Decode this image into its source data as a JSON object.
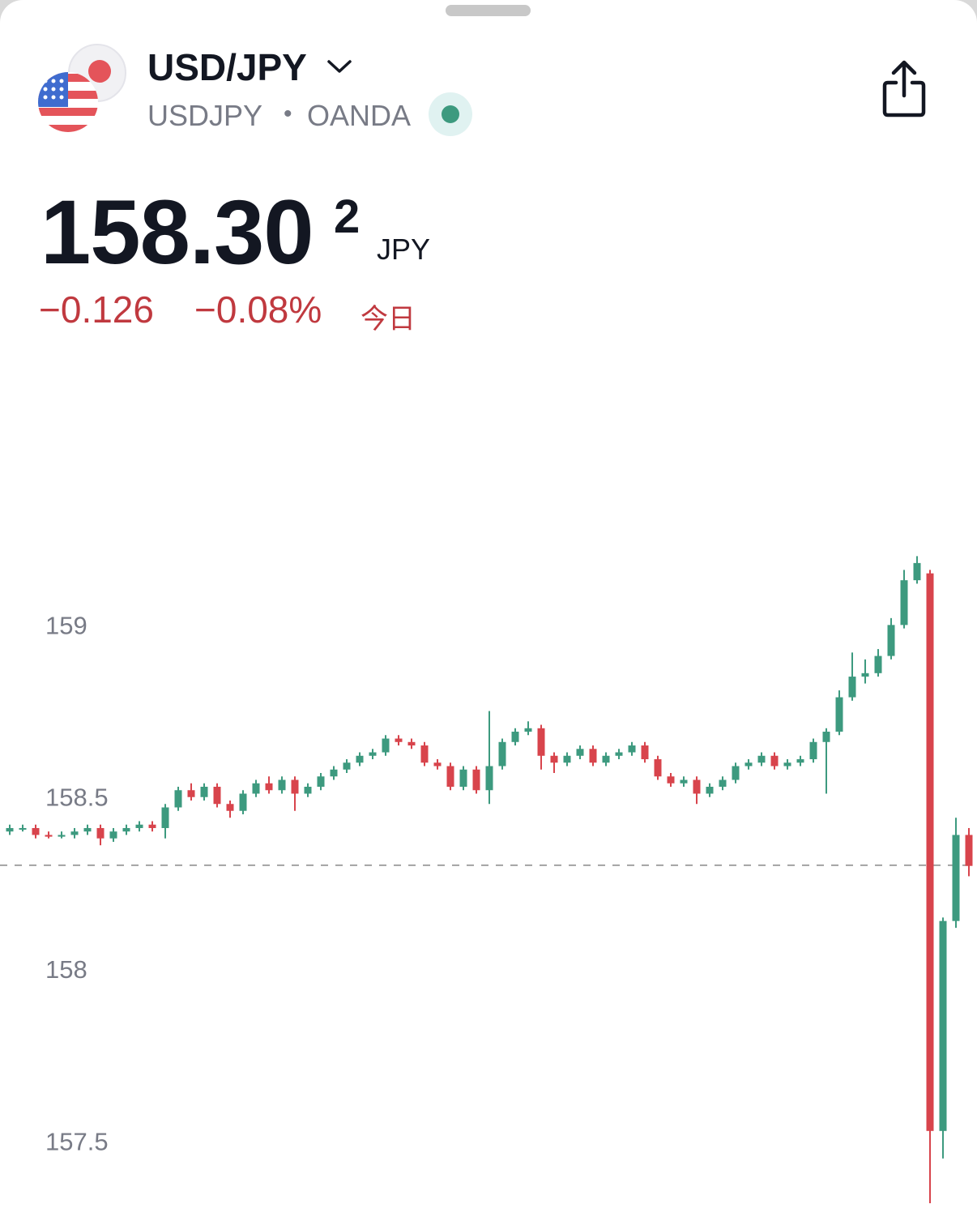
{
  "header": {
    "symbol": "USD/JPY",
    "ticker": "USDJPY",
    "separator": "•",
    "exchange": "OANDA",
    "price_main": "158.30",
    "price_pip": "2",
    "currency": "JPY",
    "change": "−0.126",
    "change_percent": "−0.08%",
    "period": "今日"
  },
  "chart_data": {
    "type": "candlestick",
    "open": [
      158.4,
      158.41,
      158.41,
      158.39,
      158.385,
      158.39,
      158.4,
      158.41,
      158.38,
      158.4,
      158.41,
      158.42,
      158.41,
      158.47,
      158.52,
      158.5,
      158.53,
      158.48,
      158.46,
      158.51,
      158.54,
      158.52,
      158.55,
      158.51,
      158.53,
      158.56,
      158.58,
      158.6,
      158.62,
      158.63,
      158.67,
      158.66,
      158.65,
      158.6,
      158.59,
      158.53,
      158.58,
      158.52,
      158.59,
      158.66,
      158.69,
      158.7,
      158.62,
      158.6,
      158.62,
      158.64,
      158.6,
      158.62,
      158.63,
      158.65,
      158.61,
      158.56,
      158.54,
      158.55,
      158.51,
      158.53,
      158.55,
      158.59,
      158.6,
      158.62,
      158.59,
      158.6,
      158.61,
      158.66,
      158.69,
      158.79,
      158.85,
      158.86,
      158.91,
      159.0,
      159.13,
      159.15,
      157.53,
      158.14,
      158.39
    ],
    "high": [
      158.42,
      158.42,
      158.42,
      158.4,
      158.4,
      158.41,
      158.42,
      158.42,
      158.41,
      158.42,
      158.43,
      158.43,
      158.48,
      158.53,
      158.54,
      158.54,
      158.54,
      158.49,
      158.52,
      158.55,
      158.56,
      158.56,
      158.56,
      158.54,
      158.57,
      158.59,
      158.61,
      158.63,
      158.64,
      158.68,
      158.68,
      158.67,
      158.66,
      158.61,
      158.6,
      158.59,
      158.59,
      158.75,
      158.67,
      158.7,
      158.72,
      158.71,
      158.63,
      158.63,
      158.65,
      158.65,
      158.63,
      158.64,
      158.66,
      158.66,
      158.62,
      158.57,
      158.56,
      158.56,
      158.54,
      158.56,
      158.6,
      158.61,
      158.63,
      158.63,
      158.61,
      158.62,
      158.67,
      158.7,
      158.81,
      158.92,
      158.9,
      158.93,
      159.02,
      159.16,
      159.2,
      159.16,
      158.15,
      158.44,
      158.41
    ],
    "low": [
      158.39,
      158.4,
      158.38,
      158.38,
      158.38,
      158.38,
      158.39,
      158.36,
      158.37,
      158.39,
      158.4,
      158.4,
      158.38,
      158.46,
      158.49,
      158.49,
      158.47,
      158.44,
      158.45,
      158.5,
      158.51,
      158.51,
      158.46,
      158.5,
      158.52,
      158.55,
      158.57,
      158.59,
      158.61,
      158.62,
      158.65,
      158.64,
      158.59,
      158.58,
      158.52,
      158.52,
      158.51,
      158.48,
      158.58,
      158.65,
      158.68,
      158.58,
      158.57,
      158.59,
      158.61,
      158.59,
      158.59,
      158.61,
      158.62,
      158.6,
      158.55,
      158.53,
      158.53,
      158.48,
      158.5,
      158.52,
      158.54,
      158.58,
      158.59,
      158.58,
      158.58,
      158.59,
      158.6,
      158.51,
      158.68,
      158.78,
      158.83,
      158.85,
      158.9,
      158.99,
      159.12,
      157.32,
      157.45,
      158.12,
      158.27
    ],
    "close": [
      158.41,
      158.41,
      158.39,
      158.385,
      158.39,
      158.4,
      158.41,
      158.38,
      158.4,
      158.41,
      158.42,
      158.41,
      158.47,
      158.52,
      158.5,
      158.53,
      158.48,
      158.46,
      158.51,
      158.54,
      158.52,
      158.55,
      158.51,
      158.53,
      158.56,
      158.58,
      158.6,
      158.62,
      158.63,
      158.67,
      158.66,
      158.65,
      158.6,
      158.59,
      158.53,
      158.58,
      158.52,
      158.59,
      158.66,
      158.69,
      158.7,
      158.62,
      158.6,
      158.62,
      158.64,
      158.6,
      158.62,
      158.63,
      158.65,
      158.61,
      158.56,
      158.54,
      158.55,
      158.51,
      158.53,
      158.55,
      158.59,
      158.6,
      158.62,
      158.59,
      158.6,
      158.61,
      158.66,
      158.69,
      158.79,
      158.85,
      158.86,
      158.91,
      159.0,
      159.13,
      159.18,
      157.53,
      158.14,
      158.39,
      158.3
    ],
    "up_color": "#3d9a7f",
    "down_color": "#d8444c",
    "last_price": 158.302,
    "ylim": [
      157.28,
      159.78
    ],
    "yticks": [
      157.5,
      158,
      158.5,
      159
    ],
    "grid": false
  }
}
